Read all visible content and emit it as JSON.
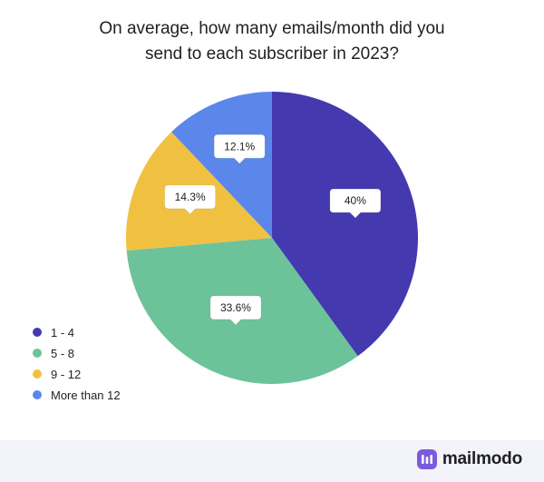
{
  "chart_data": {
    "type": "pie",
    "title_lines": [
      "On average, how many emails/month did you",
      "send to each subscriber in 2023?"
    ],
    "slices": [
      {
        "label": "1 - 4",
        "value": 40,
        "display": "40%",
        "color": "#4539b0"
      },
      {
        "label": "5 - 8",
        "value": 33.6,
        "display": "33.6%",
        "color": "#6cc39a"
      },
      {
        "label": "9 - 12",
        "value": 14.3,
        "display": "14.3%",
        "color": "#f0c141"
      },
      {
        "label": "More than 12",
        "value": 12.1,
        "display": "12.1%",
        "color": "#5b87ea"
      }
    ],
    "legend_position": "bottom-left"
  },
  "brand": {
    "name": "mailmodo",
    "color": "#7b5bd9"
  }
}
